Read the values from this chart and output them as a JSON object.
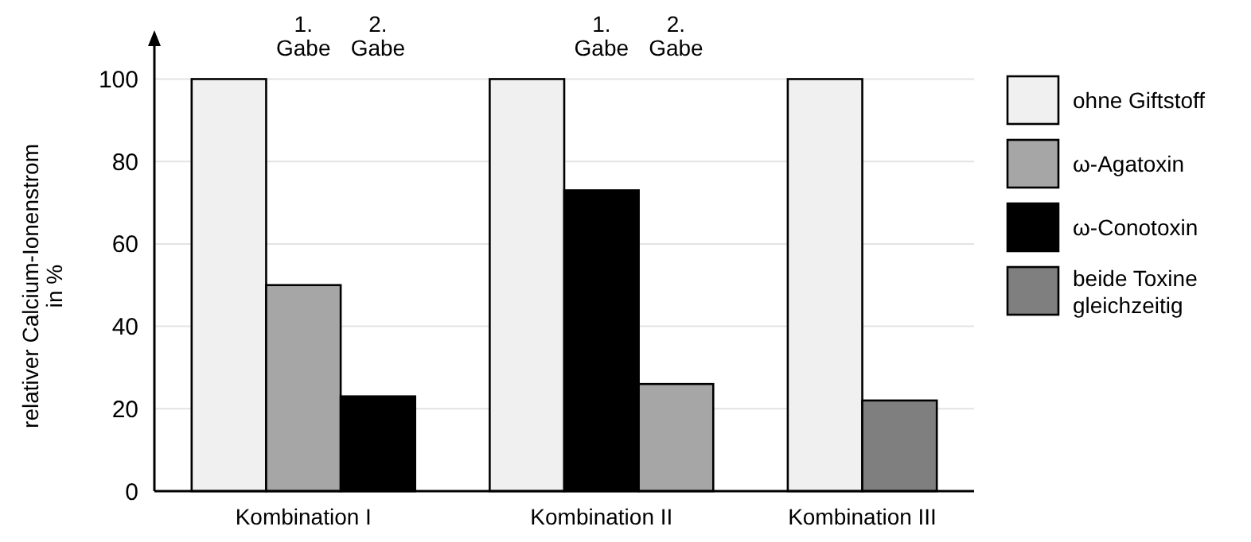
{
  "chart_data": {
    "type": "bar",
    "ylabel": "relativer Calcium-Ionenstrom in %",
    "categories": [
      "Kombination I",
      "Kombination II",
      "Kombination III"
    ],
    "ylim": [
      0,
      108
    ],
    "yticks": [
      0,
      20,
      40,
      60,
      80,
      100
    ],
    "grid": "y",
    "legend": "right",
    "series": [
      {
        "name": "ohne Giftstoff",
        "color": "#f0f0f0",
        "values": [
          100,
          100,
          100
        ]
      },
      {
        "name": "ω-Agatoxin",
        "color": "#a6a6a6",
        "values": [
          50,
          null,
          null
        ]
      },
      {
        "name": "ω-Conotoxin",
        "color": "#000000",
        "values": [
          null,
          73,
          null
        ]
      },
      {
        "name": "beide Toxine gleichzeitig",
        "color": "#7f7f7f",
        "values": [
          null,
          null,
          22
        ]
      },
      {
        "color": "#000000",
        "values": [
          23,
          null,
          null
        ]
      },
      {
        "color": "#a6a6a6",
        "values": [
          null,
          26,
          null
        ]
      }
    ],
    "annotations": [
      "1. Gabe",
      "2. Gabe",
      "1. Gabe",
      "2. Gabe"
    ]
  }
}
